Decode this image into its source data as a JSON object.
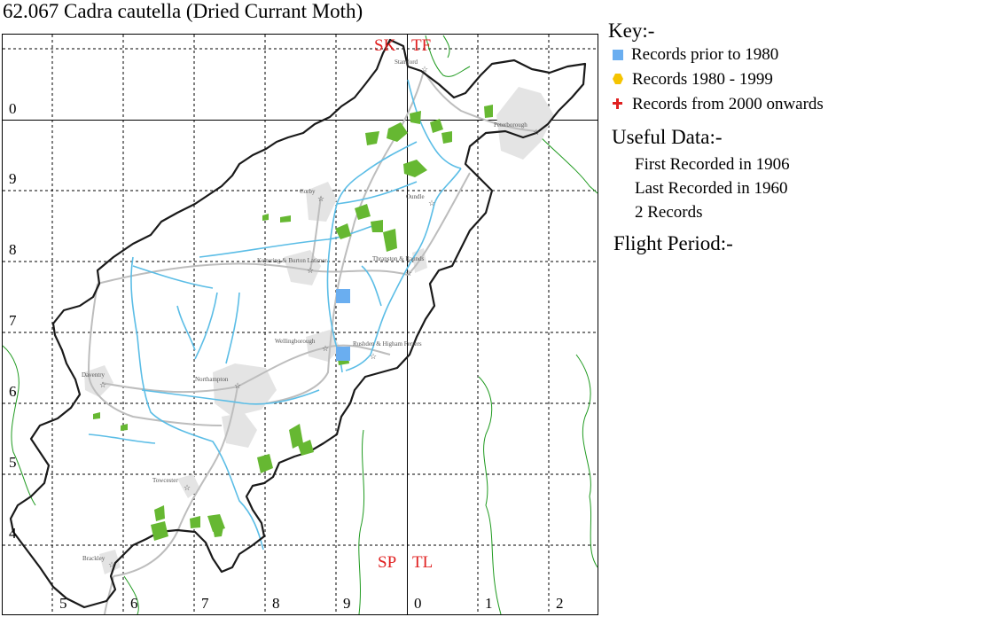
{
  "title": "62.067 Cadra cautella (Dried Currant Moth)",
  "colors": {
    "grid_major": "#000000",
    "county_border": "#1a1a1a",
    "river": "#5bbde6",
    "urban": "#e4e4e4",
    "road": "#bdbdbd",
    "woodland": "#66b832",
    "external_boundary": "#1f9a1f",
    "square_label": "#e02020",
    "record_pre_1980": "#6aaef0",
    "record_1980_1999": "#f5c400",
    "record_2000_on": "#e02020"
  },
  "map": {
    "grid_squares": [
      "SK",
      "TF",
      "SP",
      "TL"
    ],
    "northing_labels": [
      "0",
      "9",
      "8",
      "7",
      "6",
      "5",
      "4"
    ],
    "easting_labels": [
      "5",
      "6",
      "7",
      "8",
      "9",
      "0",
      "1",
      "2"
    ],
    "towns": [
      "Stamford",
      "Peterborough",
      "Corby",
      "Oundle",
      "Kettering & Burton Latimer",
      "Thrapston & Raunds",
      "Wellingborough",
      "Rushden & Higham Ferrers",
      "Daventry",
      "Northampton",
      "Towcester",
      "Brackley"
    ],
    "records": [
      {
        "period": "pre-1980",
        "grid_ref": "SP97"
      },
      {
        "period": "pre-1980",
        "grid_ref": "SP96"
      }
    ]
  },
  "key": {
    "title": "Key:-",
    "items": [
      {
        "symbol": "square",
        "label": "Records prior to 1980"
      },
      {
        "symbol": "hexagon",
        "label": "Records 1980 - 1999"
      },
      {
        "symbol": "cross",
        "label": "Records from 2000 onwards"
      }
    ]
  },
  "useful_data": {
    "title": "Useful Data:-",
    "first_recorded": "First Recorded in 1906",
    "last_recorded": "Last Recorded in 1960",
    "records": "2 Records"
  },
  "flight_period": {
    "title": "Flight Period:-"
  }
}
